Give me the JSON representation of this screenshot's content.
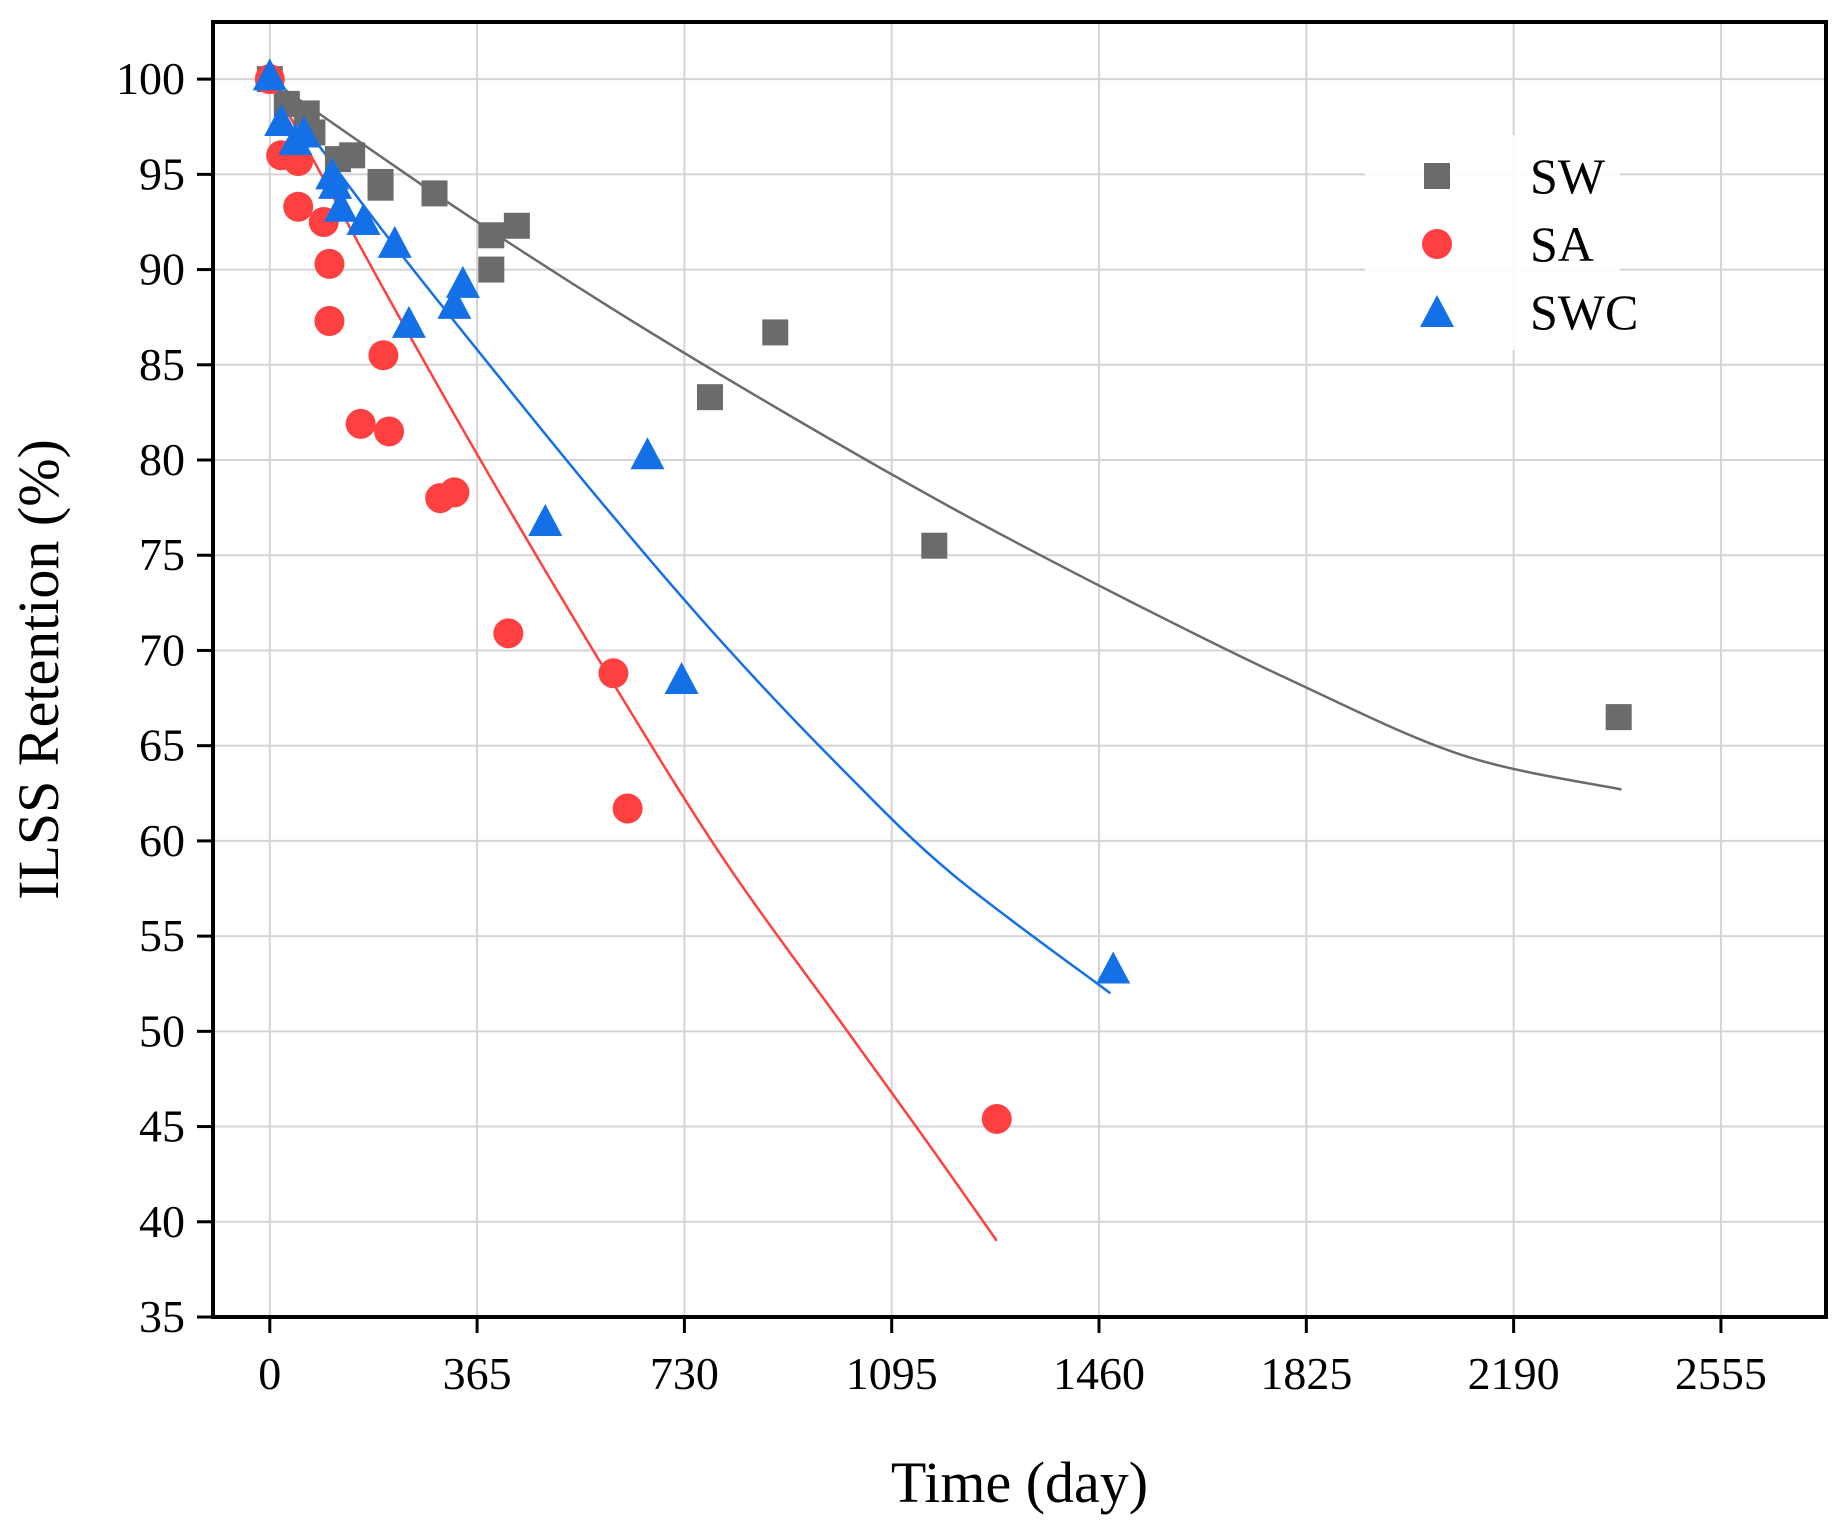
{
  "chart_data": {
    "type": "scatter",
    "title": "",
    "xlabel": "Time (day)",
    "ylabel": "ILSS Retention (%)",
    "xlim": [
      -100,
      2740
    ],
    "ylim": [
      35,
      103
    ],
    "xticks": [
      0,
      365,
      730,
      1095,
      1460,
      1825,
      2190,
      2555
    ],
    "yticks": [
      35,
      40,
      45,
      50,
      55,
      60,
      65,
      70,
      75,
      80,
      85,
      90,
      95,
      100
    ],
    "grid": true,
    "legend_position": "top-right",
    "series": [
      {
        "name": "SW",
        "marker": "square",
        "color": "#6b6b6b",
        "points": [
          [
            0,
            100
          ],
          [
            30,
            98.7
          ],
          [
            65,
            98.2
          ],
          [
            75,
            97.2
          ],
          [
            120,
            95.8
          ],
          [
            145,
            96.0
          ],
          [
            195,
            94.6
          ],
          [
            195,
            94.3
          ],
          [
            290,
            94.0
          ],
          [
            390,
            91.8
          ],
          [
            390,
            90.0
          ],
          [
            435,
            92.3
          ],
          [
            775,
            83.3
          ],
          [
            890,
            86.7
          ],
          [
            1170,
            75.5
          ],
          [
            2375,
            66.5
          ]
        ],
        "fit": [
          [
            0,
            100
          ],
          [
            300,
            93.8
          ],
          [
            600,
            88.0
          ],
          [
            900,
            82.6
          ],
          [
            1200,
            77.5
          ],
          [
            1500,
            72.8
          ],
          [
            1800,
            68.4
          ],
          [
            2100,
            64.5
          ],
          [
            2380,
            62.7
          ]
        ]
      },
      {
        "name": "SA",
        "marker": "circle",
        "color": "#ff4040",
        "points": [
          [
            0,
            100
          ],
          [
            20,
            96.0
          ],
          [
            50,
            95.7
          ],
          [
            50,
            93.3
          ],
          [
            95,
            92.5
          ],
          [
            105,
            90.3
          ],
          [
            105,
            87.3
          ],
          [
            160,
            81.9
          ],
          [
            200,
            85.5
          ],
          [
            210,
            81.5
          ],
          [
            300,
            78.0
          ],
          [
            325,
            78.3
          ],
          [
            420,
            70.9
          ],
          [
            605,
            68.8
          ],
          [
            630,
            61.7
          ],
          [
            1280,
            45.4
          ]
        ],
        "fit": [
          [
            0,
            100
          ],
          [
            200,
            89.0
          ],
          [
            400,
            78.5
          ],
          [
            600,
            68.5
          ],
          [
            800,
            59.0
          ],
          [
            1000,
            50.7
          ],
          [
            1150,
            44.5
          ],
          [
            1280,
            39.0
          ]
        ]
      },
      {
        "name": "SWC",
        "marker": "triangle",
        "color": "#1470e6",
        "points": [
          [
            0,
            100.2
          ],
          [
            20,
            97.8
          ],
          [
            45,
            96.8
          ],
          [
            60,
            97.2
          ],
          [
            110,
            95.0
          ],
          [
            115,
            94.5
          ],
          [
            125,
            93.3
          ],
          [
            165,
            92.6
          ],
          [
            220,
            91.4
          ],
          [
            245,
            87.2
          ],
          [
            325,
            88.2
          ],
          [
            340,
            89.3
          ],
          [
            485,
            76.8
          ],
          [
            665,
            80.3
          ],
          [
            725,
            68.5
          ],
          [
            1485,
            53.3
          ]
        ],
        "fit": [
          [
            0,
            100
          ],
          [
            200,
            92.0
          ],
          [
            400,
            84.5
          ],
          [
            600,
            77.2
          ],
          [
            800,
            70.3
          ],
          [
            1000,
            64.0
          ],
          [
            1200,
            58.3
          ],
          [
            1480,
            52.0
          ]
        ]
      }
    ]
  }
}
